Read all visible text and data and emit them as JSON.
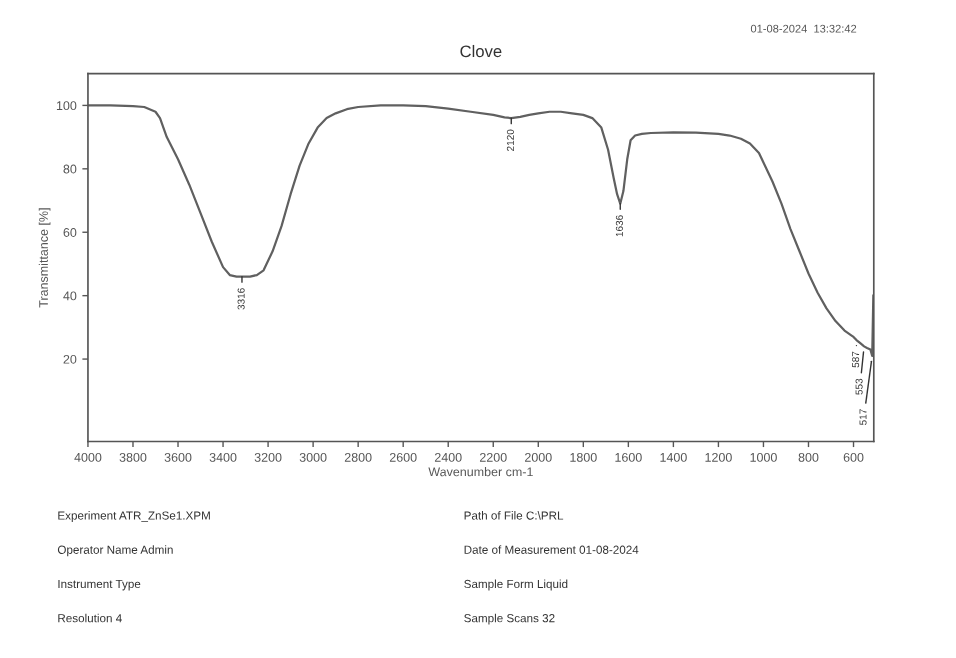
{
  "chart_data": {
    "type": "line",
    "title": "Clove",
    "xlabel": "Wavenumber cm-1",
    "ylabel": "Transmittance [%]",
    "series": [
      {
        "color": "#606060",
        "x": [
          4000,
          3900,
          3800,
          3750,
          3700,
          3680,
          3650,
          3600,
          3550,
          3500,
          3450,
          3400,
          3370,
          3340,
          3316,
          3280,
          3250,
          3220,
          3180,
          3140,
          3100,
          3060,
          3020,
          2980,
          2940,
          2900,
          2850,
          2800,
          2700,
          2600,
          2500,
          2400,
          2300,
          2200,
          2150,
          2120,
          2080,
          2040,
          2000,
          1950,
          1900,
          1850,
          1800,
          1760,
          1720,
          1690,
          1665,
          1650,
          1636,
          1622,
          1605,
          1590,
          1570,
          1540,
          1500,
          1400,
          1300,
          1200,
          1150,
          1100,
          1060,
          1020,
          1000,
          960,
          920,
          880,
          840,
          800,
          760,
          720,
          680,
          640,
          610,
          600,
          587,
          570,
          553,
          540,
          525,
          517,
          512
        ],
        "values": [
          100,
          100,
          99.8,
          99.5,
          98,
          96,
          90,
          83,
          75,
          66,
          57,
          49,
          46.5,
          46,
          46,
          46,
          46.5,
          48,
          54,
          62,
          72,
          81,
          88,
          93,
          96,
          97.5,
          98.8,
          99.5,
          100,
          100,
          99.8,
          99,
          98,
          97,
          96.2,
          96,
          96.4,
          97,
          97.5,
          98,
          98,
          97.5,
          97,
          96,
          93,
          86,
          77,
          72,
          69,
          73,
          83,
          89,
          90.5,
          91,
          91.3,
          91.5,
          91.4,
          91,
          90.5,
          89.5,
          88,
          85,
          82,
          76,
          69,
          61,
          54,
          47,
          41,
          36,
          32,
          29,
          27.5,
          27,
          26,
          25,
          24,
          23.5,
          23,
          21,
          40
        ]
      }
    ],
    "xlim": [
      4000,
      510
    ],
    "ylim": [
      -6,
      110
    ],
    "xticks": [
      4000,
      3800,
      3600,
      3400,
      3200,
      3000,
      2800,
      2600,
      2400,
      2200,
      2000,
      1800,
      1600,
      1400,
      1200,
      1000,
      800,
      600
    ],
    "yticks": [
      20,
      40,
      60,
      80,
      100
    ],
    "grid": false,
    "legend": false,
    "annotations": [
      {
        "text": "3316",
        "x": 3316,
        "y": 46
      },
      {
        "text": "2120",
        "x": 2120,
        "y": 96
      },
      {
        "text": "1636",
        "x": 1636,
        "y": 69
      },
      {
        "text": "587",
        "x": 587,
        "y": 26
      },
      {
        "text": "553",
        "x": 553,
        "y": 24
      },
      {
        "text": "517",
        "x": 517,
        "y": 21
      },
      "01-08-2024  13:32:42",
      "Experiment ATR_ZnSe1.XPM",
      "Path of File C:\\PRL",
      "Operator Name Admin",
      "Date of Measurement 01-08-2024",
      "Instrument Type",
      "Sample Form Liquid",
      "Resolution 4",
      "Sample Scans 32"
    ]
  }
}
